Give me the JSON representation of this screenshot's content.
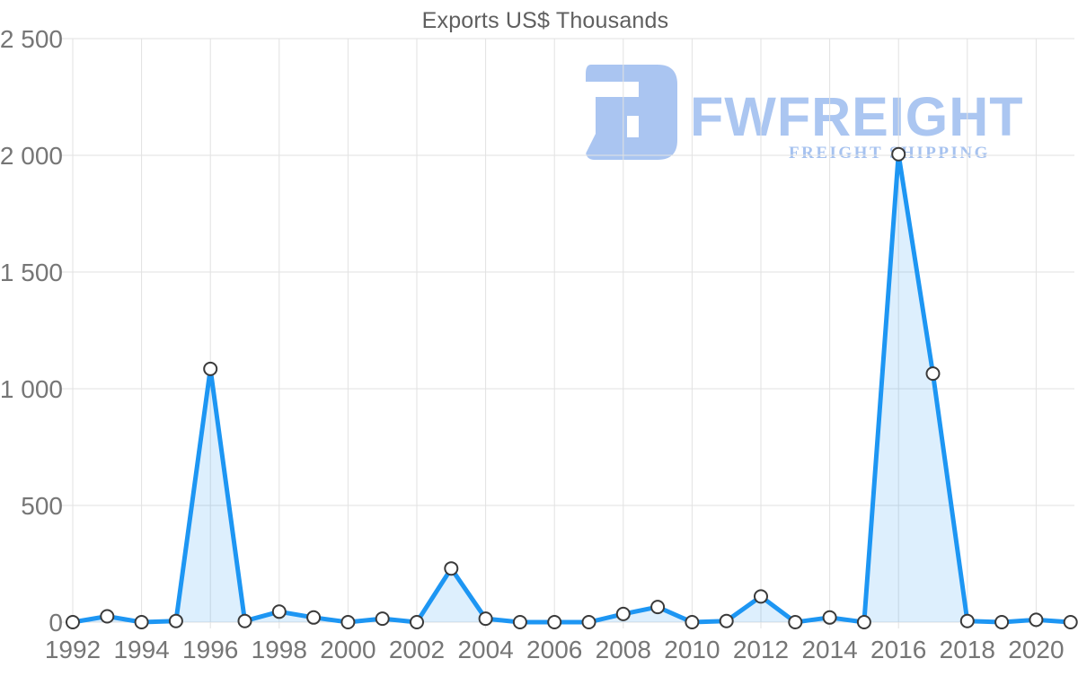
{
  "title": "Exports US$ Thousands",
  "watermark": {
    "brand": "FWFREIGHT",
    "tagline": "FREIGHT SHIPPING",
    "logo_color": "#aac5f1",
    "brand_color": "#abc6f1",
    "tagline_color": "#a6c2ef"
  },
  "chart_data": {
    "type": "area",
    "title": "Exports US$ Thousands",
    "xlabel": "",
    "ylabel": "",
    "x": [
      1992,
      1993,
      1994,
      1995,
      1996,
      1997,
      1998,
      1999,
      2000,
      2001,
      2002,
      2003,
      2004,
      2005,
      2006,
      2007,
      2008,
      2009,
      2010,
      2011,
      2012,
      2013,
      2014,
      2015,
      2016,
      2017,
      2018,
      2019,
      2020,
      2021
    ],
    "series": [
      {
        "name": "Exports US$ Thousands",
        "values": [
          0,
          25,
          0,
          5,
          1085,
          5,
          45,
          20,
          0,
          15,
          0,
          230,
          15,
          0,
          0,
          0,
          35,
          65,
          0,
          5,
          110,
          0,
          20,
          0,
          2005,
          1065,
          5,
          0,
          10,
          0
        ]
      }
    ],
    "ylim": [
      0,
      2500
    ],
    "y_ticks": [
      0,
      500,
      1000,
      1500,
      2000,
      2500
    ],
    "y_tick_labels": [
      "0",
      "500",
      "1 000",
      "1 500",
      "2 000",
      "2 500"
    ],
    "x_tick_years": [
      1992,
      1994,
      1996,
      1998,
      2000,
      2002,
      2004,
      2006,
      2008,
      2010,
      2012,
      2014,
      2016,
      2018,
      2020
    ],
    "grid": true,
    "legend_position": "none",
    "line_color": "#1d96f3",
    "fill_color_rgba": "rgba(29,150,243,0.15)",
    "grid_color": "#e2e2e2",
    "tick_color": "#767676",
    "marker_fill": "#ffffff",
    "marker_stroke": "#3a3a3a"
  }
}
